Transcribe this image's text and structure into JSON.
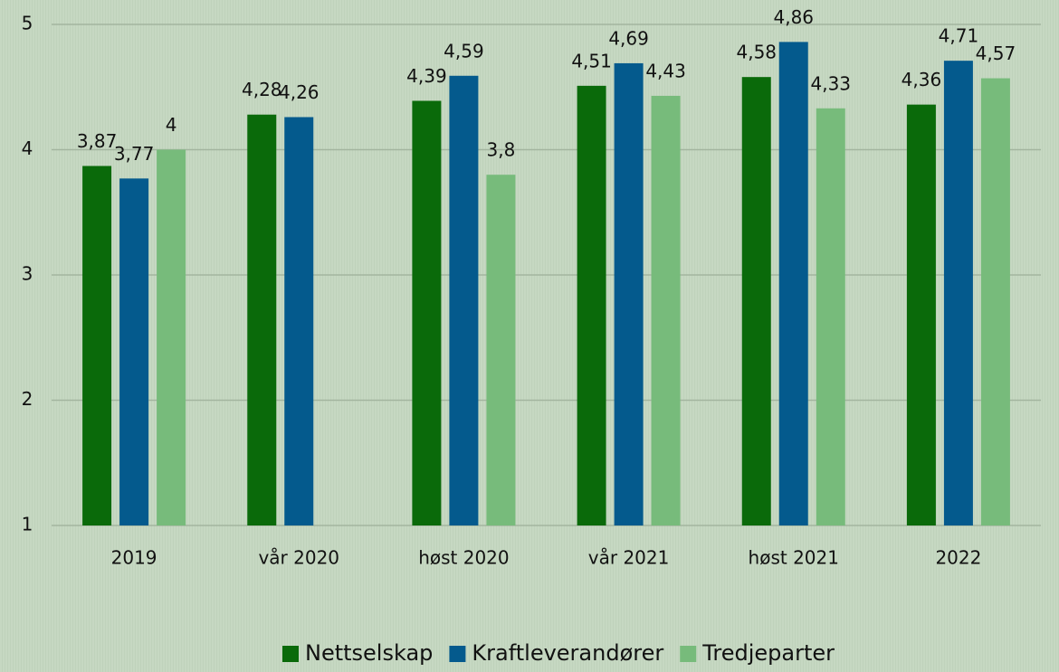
{
  "chart_data": {
    "type": "bar",
    "categories": [
      "2019",
      "vår 2020",
      "høst 2020",
      "vår 2021",
      "høst 2021",
      "2022"
    ],
    "series": [
      {
        "name": "Nettselskap",
        "color": "#0a6a0a",
        "values": [
          3.87,
          4.28,
          4.39,
          4.51,
          4.58,
          4.36
        ],
        "value_labels": [
          "3,87",
          "4,28",
          "4,39",
          "4,51",
          "4,58",
          "4,36"
        ]
      },
      {
        "name": "Kraftleverandører",
        "color": "#045a8d",
        "values": [
          3.77,
          4.26,
          4.59,
          4.69,
          4.86,
          4.71
        ],
        "value_labels": [
          "3,77",
          "4,26",
          "4,59",
          "4,69",
          "4,86",
          "4,71"
        ]
      },
      {
        "name": "Tredjeparter",
        "color": "#77bb7b",
        "values": [
          4,
          null,
          3.8,
          4.43,
          4.33,
          4.57
        ],
        "value_labels": [
          "4",
          null,
          "3,8",
          "4,43",
          "4,33",
          "4,57"
        ]
      }
    ],
    "ylim": [
      1,
      5
    ],
    "yticks": [
      1,
      2,
      3,
      4,
      5
    ],
    "grid": true,
    "legend": "bottom"
  }
}
